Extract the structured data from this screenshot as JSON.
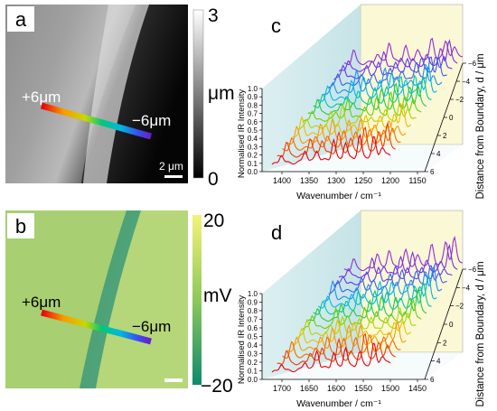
{
  "panel_a": {
    "letter": "a",
    "line_start_label": "+6μm",
    "line_end_label": "−6μm",
    "scalebar_label": "2 μm",
    "colorbar": {
      "max": "3",
      "unit": "μm",
      "min": "0"
    }
  },
  "panel_b": {
    "letter": "b",
    "line_start_label": "+6μm",
    "line_end_label": "−6μm",
    "colorbar": {
      "max": "20",
      "unit": "mV",
      "min": "−20"
    }
  },
  "chart_data": [
    {
      "panel": "c",
      "type": "line",
      "title": "",
      "xlabel": "Wavenumber / cm⁻¹",
      "ylabel": "Normalised IR Intensity",
      "zlabel": "Distance from Boundary, d / μm",
      "x_ticks": [
        "1400",
        "1350",
        "1300",
        "1250",
        "1200",
        "1150"
      ],
      "y_ticks": [
        "0.0",
        "0.1",
        "0.2",
        "0.3",
        "0.4",
        "0.5",
        "0.6",
        "0.7",
        "0.8",
        "0.9",
        "1.0"
      ],
      "z_ticks": [
        "6",
        "4",
        "2",
        "0",
        "−2",
        "−4",
        "−6"
      ],
      "series_colors": [
        "#e8000b",
        "#f03a00",
        "#f46a00",
        "#f89a00",
        "#e8c000",
        "#b4d400",
        "#6ed000",
        "#2ec83c",
        "#00c8a0",
        "#00b8e0",
        "#1e8ef0",
        "#3a5ef0",
        "#5a3ef0",
        "#7a2ee0",
        "#9a2ad0"
      ]
    },
    {
      "panel": "d",
      "type": "line",
      "title": "",
      "xlabel": "Wavenumber / cm⁻¹",
      "ylabel": "Normalised IR Intensity",
      "zlabel": "Distance from Boundary, d / μm",
      "x_ticks": [
        "1700",
        "1650",
        "1600",
        "1550",
        "1500",
        "1450"
      ],
      "y_ticks": [
        "0.0",
        "0.1",
        "0.2",
        "0.3",
        "0.4",
        "0.5",
        "0.6",
        "0.7",
        "0.8",
        "0.9",
        "1.0"
      ],
      "z_ticks": [
        "6",
        "4",
        "2",
        "0",
        "−2",
        "−4",
        "−6"
      ],
      "series_colors": [
        "#e8000b",
        "#f03a00",
        "#f46a00",
        "#f89a00",
        "#e8c000",
        "#b4d400",
        "#6ed000",
        "#2ec83c",
        "#00c8a0",
        "#00b8e0",
        "#1e8ef0",
        "#3a5ef0",
        "#5a3ef0",
        "#7a2ee0",
        "#9a2ad0"
      ]
    }
  ]
}
